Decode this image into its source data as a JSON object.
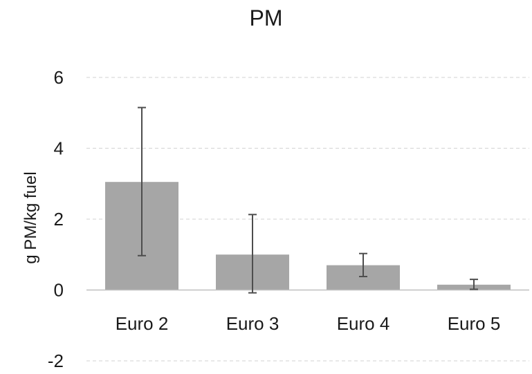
{
  "chart_data": {
    "type": "bar",
    "title": "PM",
    "xlabel": "",
    "ylabel": "g PM/kg fuel",
    "categories": [
      "Euro 2",
      "Euro 3",
      "Euro 4",
      "Euro 5"
    ],
    "values": [
      3.05,
      1.0,
      0.7,
      0.15
    ],
    "error_low": [
      0.97,
      -0.08,
      0.38,
      0.02
    ],
    "error_high": [
      5.15,
      2.13,
      1.03,
      0.3
    ],
    "ylim": [
      -2,
      6
    ],
    "yticks": [
      -2,
      0,
      2,
      4,
      6
    ],
    "ytick_labels": [
      "-2",
      "0",
      "2",
      "4",
      "6"
    ],
    "grid": true,
    "colors": {
      "bar": "#a6a6a6",
      "error_bar": "#4d4d4d",
      "grid": "#d9d9d9",
      "axis": "#bfbfbf"
    }
  }
}
